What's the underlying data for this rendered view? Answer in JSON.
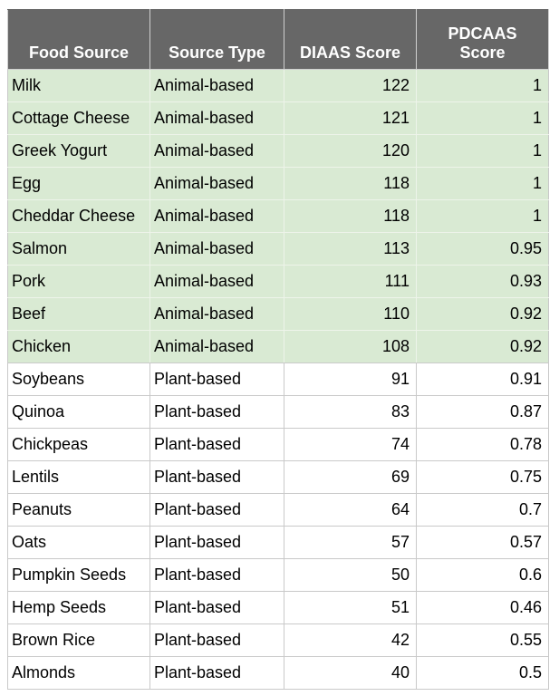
{
  "colors": {
    "header_bg": "#676767",
    "header_text": "#ffffff",
    "animal_row_bg": "#d9ead3",
    "plant_row_bg": "#ffffff",
    "grid_line": "#c9c9c9",
    "grid_line_on_green": "#eef4ea",
    "body_text": "#000000"
  },
  "chart_data": {
    "type": "table",
    "columns": [
      "Food Source",
      "Source Type",
      "DIAAS Score",
      "PDCAAS Score"
    ],
    "column_alignments": [
      "left",
      "left",
      "right",
      "right"
    ],
    "rows": [
      {
        "food": "Milk",
        "source_type": "Animal-based",
        "diaas": 122,
        "pdcaas": 1
      },
      {
        "food": "Cottage Cheese",
        "source_type": "Animal-based",
        "diaas": 121,
        "pdcaas": 1
      },
      {
        "food": "Greek Yogurt",
        "source_type": "Animal-based",
        "diaas": 120,
        "pdcaas": 1
      },
      {
        "food": "Egg",
        "source_type": "Animal-based",
        "diaas": 118,
        "pdcaas": 1
      },
      {
        "food": "Cheddar Cheese",
        "source_type": "Animal-based",
        "diaas": 118,
        "pdcaas": 1
      },
      {
        "food": "Salmon",
        "source_type": "Animal-based",
        "diaas": 113,
        "pdcaas": 0.95
      },
      {
        "food": "Pork",
        "source_type": "Animal-based",
        "diaas": 111,
        "pdcaas": 0.93
      },
      {
        "food": "Beef",
        "source_type": "Animal-based",
        "diaas": 110,
        "pdcaas": 0.92
      },
      {
        "food": "Chicken",
        "source_type": "Animal-based",
        "diaas": 108,
        "pdcaas": 0.92
      },
      {
        "food": "Soybeans",
        "source_type": "Plant-based",
        "diaas": 91,
        "pdcaas": 0.91
      },
      {
        "food": "Quinoa",
        "source_type": "Plant-based",
        "diaas": 83,
        "pdcaas": 0.87
      },
      {
        "food": "Chickpeas",
        "source_type": "Plant-based",
        "diaas": 74,
        "pdcaas": 0.78
      },
      {
        "food": "Lentils",
        "source_type": "Plant-based",
        "diaas": 69,
        "pdcaas": 0.75
      },
      {
        "food": "Peanuts",
        "source_type": "Plant-based",
        "diaas": 64,
        "pdcaas": 0.7
      },
      {
        "food": "Oats",
        "source_type": "Plant-based",
        "diaas": 57,
        "pdcaas": 0.57
      },
      {
        "food": "Pumpkin Seeds",
        "source_type": "Plant-based",
        "diaas": 50,
        "pdcaas": 0.6
      },
      {
        "food": "Hemp Seeds",
        "source_type": "Plant-based",
        "diaas": 51,
        "pdcaas": 0.46
      },
      {
        "food": "Brown Rice",
        "source_type": "Plant-based",
        "diaas": 42,
        "pdcaas": 0.55
      },
      {
        "food": "Almonds",
        "source_type": "Plant-based",
        "diaas": 40,
        "pdcaas": 0.5
      }
    ]
  }
}
